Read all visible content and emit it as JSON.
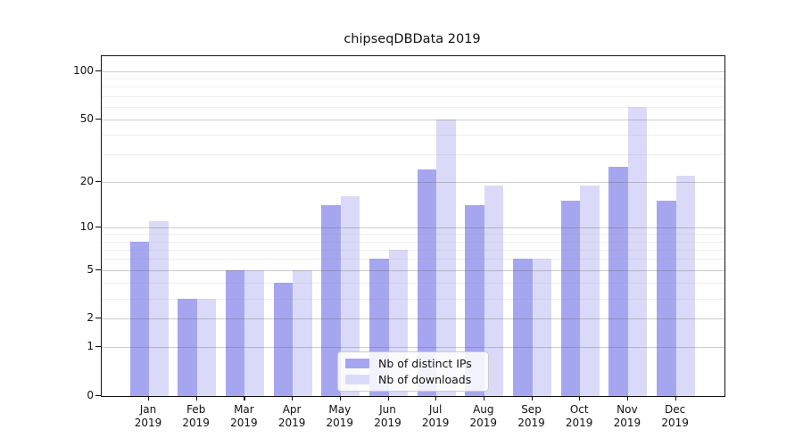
{
  "title": "chipseqDBData 2019",
  "chart_data": {
    "type": "bar",
    "title": "chipseqDBData 2019",
    "categories": [
      "Jan",
      "Feb",
      "Mar",
      "Apr",
      "May",
      "Jun",
      "Jul",
      "Aug",
      "Sep",
      "Oct",
      "Nov",
      "Dec"
    ],
    "category_year": "2019",
    "series": [
      {
        "name": "Nb of distinct IPs",
        "color": "#a6a6f0",
        "values": [
          8,
          3,
          5,
          4,
          14,
          6,
          24,
          14,
          6,
          15,
          25,
          15
        ]
      },
      {
        "name": "Nb of downloads",
        "color": "#dadaf8",
        "values": [
          11,
          3,
          5,
          5,
          16,
          7,
          50,
          19,
          6,
          19,
          60,
          22
        ]
      }
    ],
    "y_scale": "log1p",
    "ylim": [
      0,
      124
    ],
    "y_ticks_major": [
      0,
      1,
      2,
      5,
      10,
      20,
      50,
      100
    ],
    "y_ticks_minor": [
      3,
      4,
      6,
      7,
      8,
      9,
      30,
      40,
      60,
      70,
      80,
      90
    ],
    "xlabel": "",
    "ylabel": "",
    "grid": "horizontal",
    "legend_position": "lower-center",
    "axis_color": "#111111",
    "background_color": "#ffffff"
  }
}
